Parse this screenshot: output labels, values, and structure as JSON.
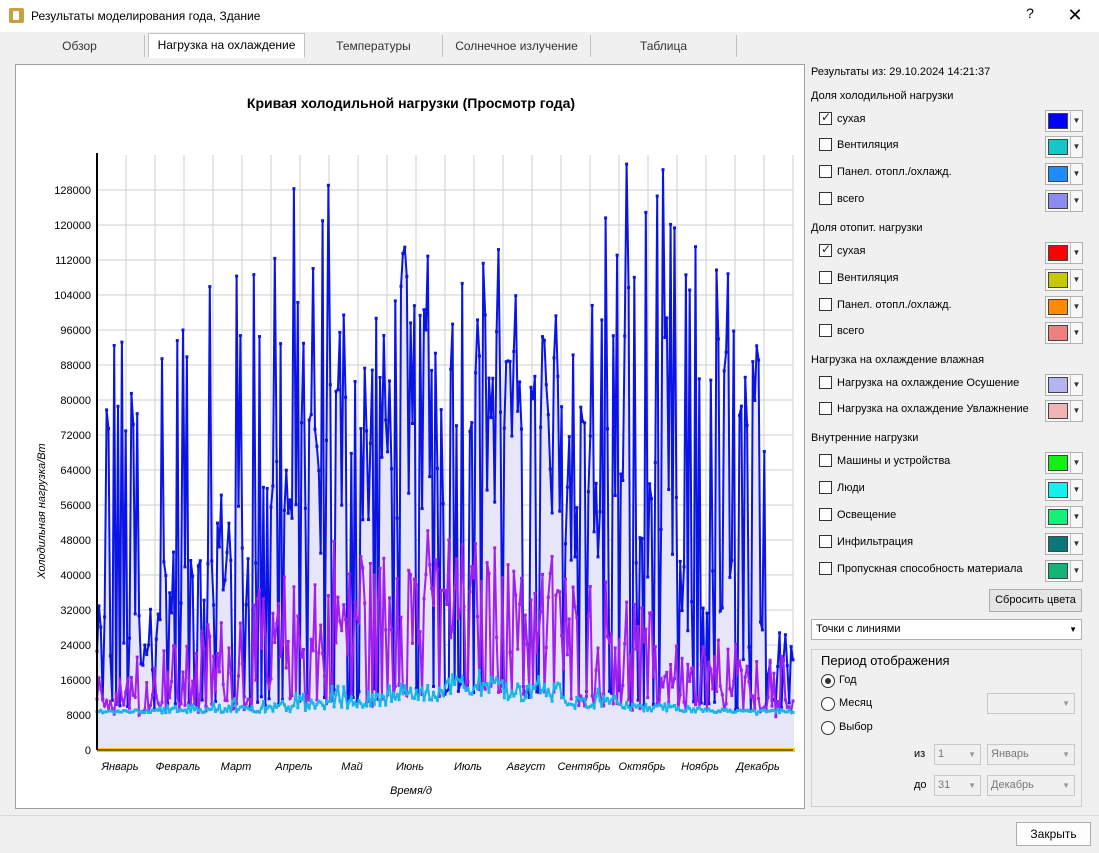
{
  "window": {
    "title": "Результаты моделирования года, Здание",
    "help": "?",
    "close": "✕"
  },
  "tabs": [
    {
      "label": "Обзор"
    },
    {
      "label": "Нагрузка на охлаждение"
    },
    {
      "label": "Температуры"
    },
    {
      "label": "Солнечное излучение"
    },
    {
      "label": "Таблица"
    }
  ],
  "chart_data": {
    "type": "line",
    "title": "Кривая холодильной нагрузки (Просмотр года)",
    "xlabel": "Время/д",
    "ylabel": "Холодильная нагрузка/Вт",
    "x_ticks": [
      "Январь",
      "Февраль",
      "Март",
      "Апрель",
      "Май",
      "Июнь",
      "Июль",
      "Август",
      "Сентябрь",
      "Октябрь",
      "Ноябрь",
      "Декабрь"
    ],
    "y_ticks": [
      0,
      8000,
      16000,
      24000,
      32000,
      40000,
      48000,
      56000,
      64000,
      72000,
      80000,
      88000,
      96000,
      104000,
      112000,
      120000,
      128000
    ],
    "ylim": [
      0,
      136000
    ],
    "xlim": [
      1,
      365
    ],
    "grid": true,
    "marker_style": "points with lines",
    "series": [
      {
        "name": "сухая",
        "color": "#0a14e6",
        "monthly_peak": [
          97000,
          106000,
          119000,
          131000,
          105000,
          121000,
          119000,
          105000,
          128000,
          134000,
          118000,
          97000
        ],
        "monthly_typical": [
          30000,
          42000,
          55000,
          70000,
          80000,
          88000,
          92000,
          88000,
          72000,
          60000,
          40000,
          28000
        ],
        "monthly_min": [
          9000,
          9000,
          9500,
          10000,
          11000,
          12000,
          13000,
          12000,
          11000,
          9500,
          9000,
          9000
        ]
      },
      {
        "name": "сухая (отопление)",
        "color": "#a020f0",
        "monthly_peak": [
          22000,
          29000,
          37000,
          42000,
          50000,
          51000,
          50000,
          45000,
          40000,
          34000,
          26000,
          22000
        ],
        "monthly_typical": [
          13000,
          17000,
          22000,
          27000,
          34000,
          38000,
          40000,
          37000,
          30000,
          22000,
          15000,
          12000
        ],
        "monthly_min": [
          8500,
          8500,
          9000,
          9500,
          10000,
          12000,
          13000,
          12000,
          10000,
          9000,
          8500,
          8500
        ]
      },
      {
        "name": "Инфильтрация",
        "color": "#1ab4e6",
        "monthly_peak": [
          10000,
          10500,
          12000,
          13000,
          15000,
          17000,
          20000,
          17000,
          14000,
          11500,
          10000,
          9500
        ],
        "monthly_typical": [
          9000,
          9200,
          9800,
          10800,
          12000,
          14000,
          15500,
          14000,
          11500,
          10000,
          9200,
          9000
        ],
        "monthly_min": [
          8500,
          8500,
          8600,
          8800,
          9500,
          11000,
          12500,
          11000,
          9500,
          8800,
          8500,
          8500
        ]
      },
      {
        "name": "всего",
        "color": "#ffcc00",
        "values_constant": 0
      }
    ]
  },
  "panel": {
    "results_label": "Результаты из: 29.10.2024 14:21:37",
    "sections": [
      {
        "title": "Доля холодильной нагрузки",
        "items": [
          {
            "label": "сухая",
            "checked": true,
            "color": "#0000ff"
          },
          {
            "label": "Вентиляция",
            "checked": false,
            "color": "#14c8c8"
          },
          {
            "label": "Панел. отопл./охлажд.",
            "checked": false,
            "color": "#1e8cff"
          },
          {
            "label": "всего",
            "checked": false,
            "color": "#8c8cf0"
          }
        ]
      },
      {
        "title": "Доля отопит. нагрузки",
        "items": [
          {
            "label": "сухая",
            "checked": true,
            "color": "#ff0000"
          },
          {
            "label": "Вентиляция",
            "checked": false,
            "color": "#c8c800"
          },
          {
            "label": "Панел. отопл./охлажд.",
            "checked": false,
            "color": "#ff8c00"
          },
          {
            "label": "всего",
            "checked": false,
            "color": "#f08080"
          }
        ]
      },
      {
        "title": "Нагрузка на охлаждение влажная",
        "items": [
          {
            "label": "Нагрузка на охлаждение Осушение",
            "checked": false,
            "color": "#b4b4f0"
          },
          {
            "label": "Нагрузка на охлаждение Увлажнение",
            "checked": false,
            "color": "#f0b4b4"
          }
        ]
      },
      {
        "title": "Внутренние нагрузки",
        "items": [
          {
            "label": "Машины и устройства",
            "checked": false,
            "color": "#14f014"
          },
          {
            "label": "Люди",
            "checked": false,
            "color": "#14f0f0"
          },
          {
            "label": "Освещение",
            "checked": false,
            "color": "#14f078"
          },
          {
            "label": "Инфильтрация",
            "checked": false,
            "color": "#0a7878"
          },
          {
            "label": "Пропускная способность материала",
            "checked": false,
            "color": "#14b478"
          }
        ]
      }
    ],
    "reset_colors": "Сбросить цвета",
    "display_mode": "Точки с линиями",
    "period": {
      "title": "Период отображения",
      "options": [
        {
          "label": "Год",
          "selected": true
        },
        {
          "label": "Месяц",
          "selected": false
        },
        {
          "label": "Выбор",
          "selected": false
        }
      ],
      "month_value": "",
      "from_label": "из",
      "from_day": "1",
      "from_month": "Январь",
      "to_label": "до",
      "to_day": "31",
      "to_month": "Декабрь"
    }
  },
  "footer": {
    "close": "Закрыть"
  }
}
